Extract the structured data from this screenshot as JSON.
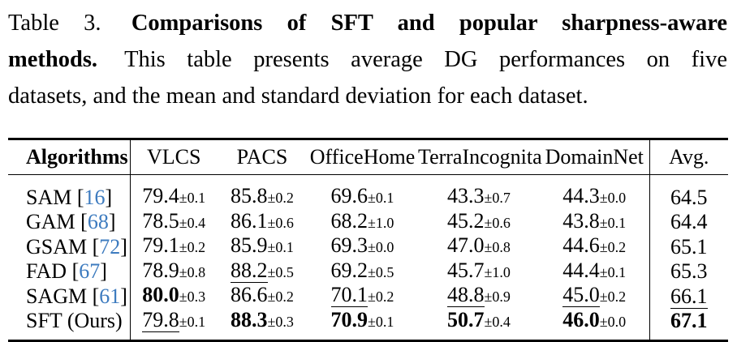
{
  "caption": {
    "label": "Table 3.",
    "title_bold": "Comparisons of SFT and popular sharpness-aware",
    "title_bold_cont": "methods.",
    "body_line2": "This table presents average DG performances on five",
    "body_line3": "datasets, and the mean and standard deviation for each dataset."
  },
  "table": {
    "columns": [
      "Algorithms",
      "VLCS",
      "PACS",
      "OfficeHome",
      "TerraIncognita",
      "DomainNet",
      "Avg."
    ],
    "plus_minus": "±",
    "citation_brackets": [
      "[",
      "]"
    ],
    "rows": [
      {
        "algorithm": "SAM",
        "citation": "16",
        "cells": [
          {
            "value": "79.4",
            "sd": "0.1",
            "style": "plain"
          },
          {
            "value": "85.8",
            "sd": "0.2",
            "style": "plain"
          },
          {
            "value": "69.6",
            "sd": "0.1",
            "style": "plain"
          },
          {
            "value": "43.3",
            "sd": "0.7",
            "style": "plain"
          },
          {
            "value": "44.3",
            "sd": "0.0",
            "style": "plain"
          }
        ],
        "avg": {
          "value": "64.5",
          "style": "plain"
        }
      },
      {
        "algorithm": "GAM",
        "citation": "68",
        "cells": [
          {
            "value": "78.5",
            "sd": "0.4",
            "style": "plain"
          },
          {
            "value": "86.1",
            "sd": "0.6",
            "style": "plain"
          },
          {
            "value": "68.2",
            "sd": "1.0",
            "style": "plain"
          },
          {
            "value": "45.2",
            "sd": "0.6",
            "style": "plain"
          },
          {
            "value": "43.8",
            "sd": "0.1",
            "style": "plain"
          }
        ],
        "avg": {
          "value": "64.4",
          "style": "plain"
        }
      },
      {
        "algorithm": "GSAM",
        "citation": "72",
        "cells": [
          {
            "value": "79.1",
            "sd": "0.2",
            "style": "plain"
          },
          {
            "value": "85.9",
            "sd": "0.1",
            "style": "plain"
          },
          {
            "value": "69.3",
            "sd": "0.0",
            "style": "plain"
          },
          {
            "value": "47.0",
            "sd": "0.8",
            "style": "plain"
          },
          {
            "value": "44.6",
            "sd": "0.2",
            "style": "plain"
          }
        ],
        "avg": {
          "value": "65.1",
          "style": "plain"
        }
      },
      {
        "algorithm": "FAD",
        "citation": "67",
        "cells": [
          {
            "value": "78.9",
            "sd": "0.8",
            "style": "plain"
          },
          {
            "value": "88.2",
            "sd": "0.5",
            "style": "underline"
          },
          {
            "value": "69.2",
            "sd": "0.5",
            "style": "plain"
          },
          {
            "value": "45.7",
            "sd": "1.0",
            "style": "plain"
          },
          {
            "value": "44.4",
            "sd": "0.1",
            "style": "plain"
          }
        ],
        "avg": {
          "value": "65.3",
          "style": "plain"
        }
      },
      {
        "algorithm": "SAGM",
        "citation": "61",
        "cells": [
          {
            "value": "80.0",
            "sd": "0.3",
            "style": "bold"
          },
          {
            "value": "86.6",
            "sd": "0.2",
            "style": "plain"
          },
          {
            "value": "70.1",
            "sd": "0.2",
            "style": "underline"
          },
          {
            "value": "48.8",
            "sd": "0.9",
            "style": "underline"
          },
          {
            "value": "45.0",
            "sd": "0.2",
            "style": "underline"
          }
        ],
        "avg": {
          "value": "66.1",
          "style": "underline"
        }
      },
      {
        "algorithm": "SFT (Ours)",
        "citation": null,
        "cells": [
          {
            "value": "79.8",
            "sd": "0.1",
            "style": "underline"
          },
          {
            "value": "88.3",
            "sd": "0.3",
            "style": "bold"
          },
          {
            "value": "70.9",
            "sd": "0.1",
            "style": "bold"
          },
          {
            "value": "50.7",
            "sd": "0.4",
            "style": "bold"
          },
          {
            "value": "46.0",
            "sd": "0.0",
            "style": "bold"
          }
        ],
        "avg": {
          "value": "67.1",
          "style": "bold"
        }
      }
    ]
  },
  "colors": {
    "citation_blue": "#3d7bbf",
    "text": "#000000",
    "background": "#ffffff",
    "rule": "#000000"
  }
}
